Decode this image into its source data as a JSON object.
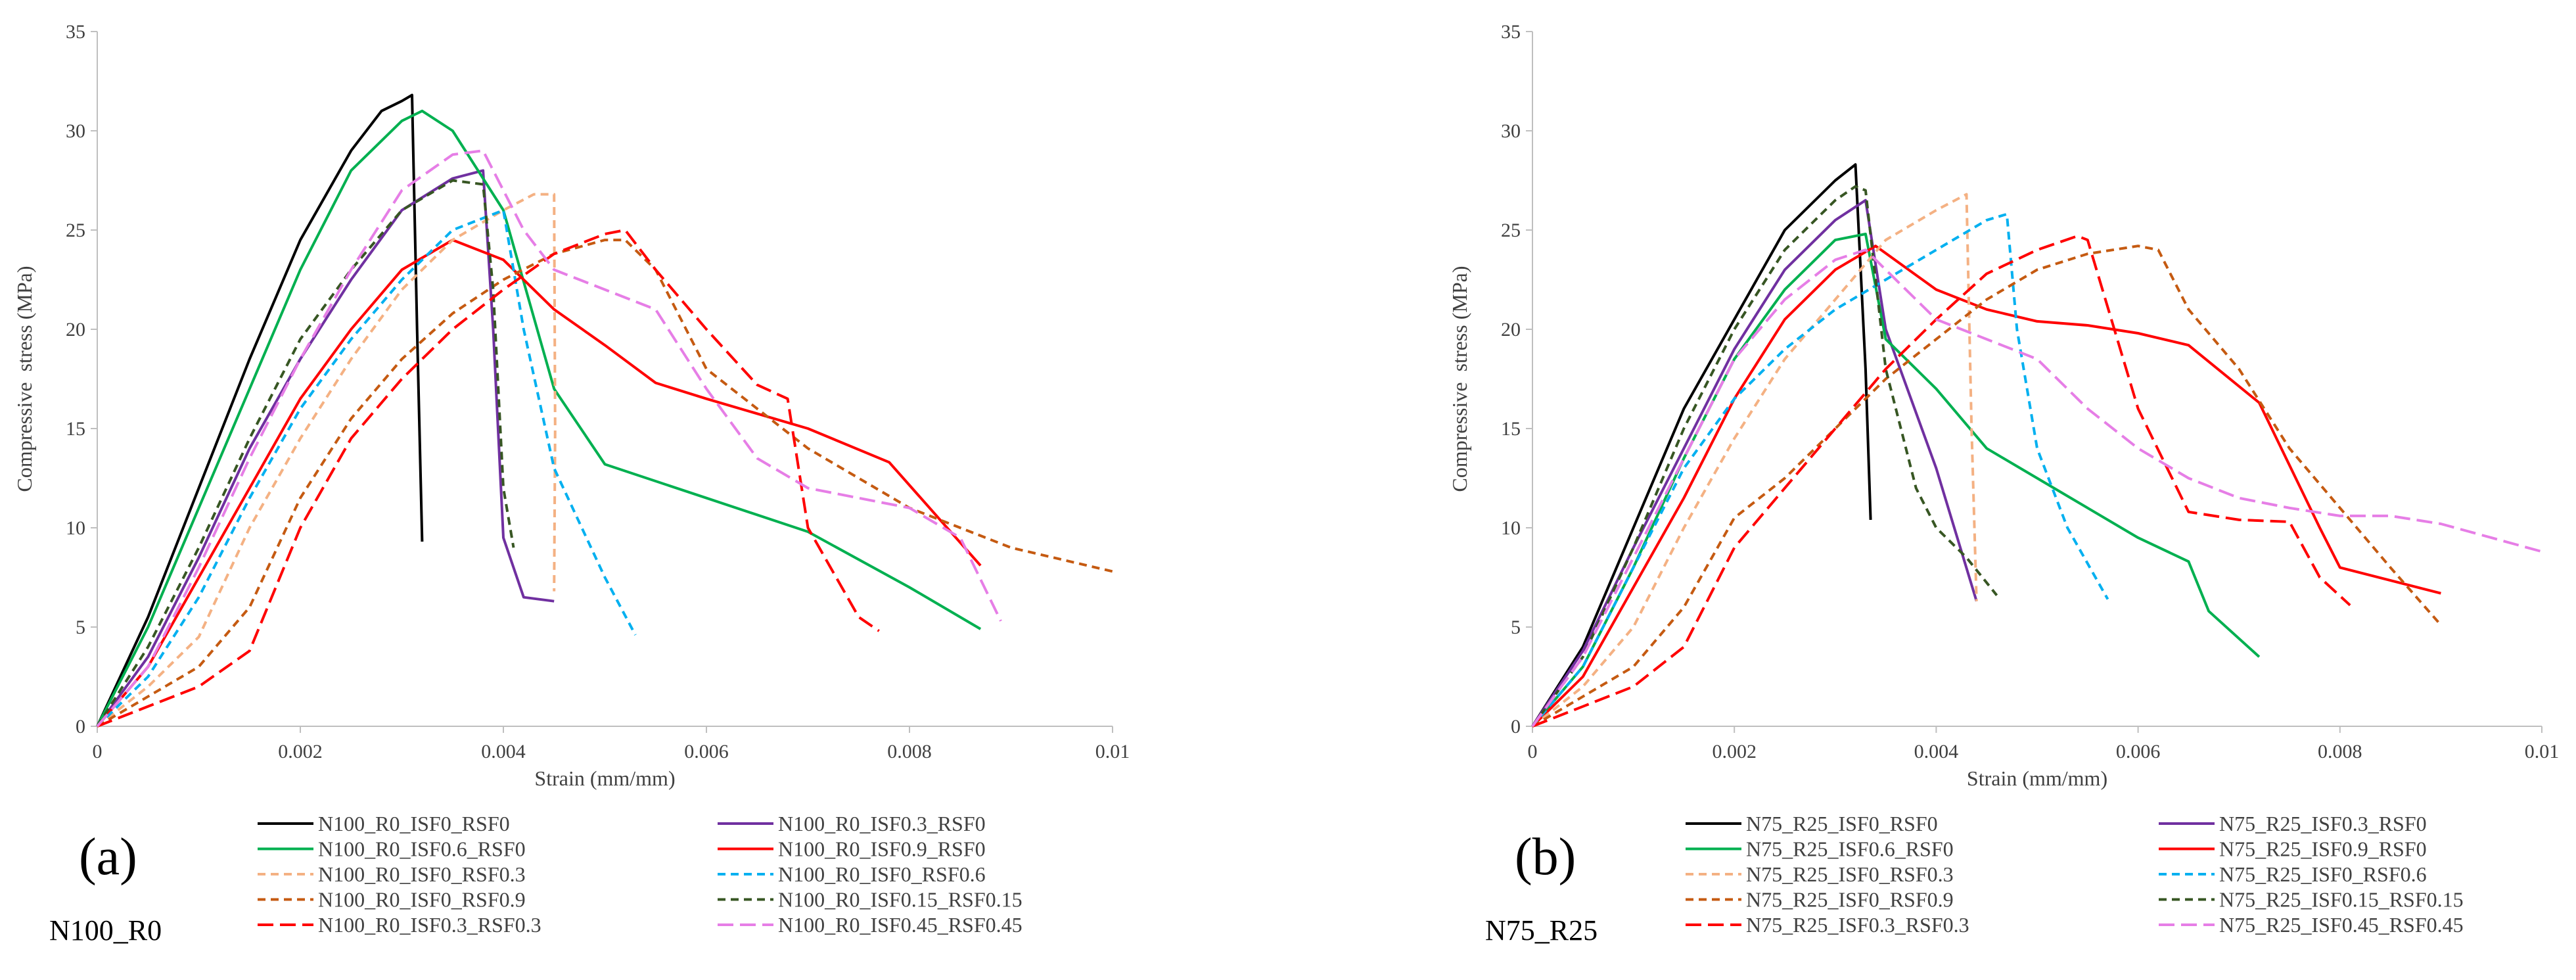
{
  "chart_data": [
    {
      "type": "line",
      "panel_label": "(a)",
      "group_label": "N100_R0",
      "xlabel": "Strain (mm/mm)",
      "ylabel": "Compressive  stress (MPa)",
      "xlim": [
        0,
        0.01
      ],
      "ylim": [
        0,
        35
      ],
      "xticks": [
        0,
        0.002,
        0.004,
        0.006,
        0.008,
        0.01
      ],
      "xtick_labels": [
        "0",
        "0.002",
        "0.004",
        "0.006",
        "0.008",
        "0.01"
      ],
      "yticks": [
        0,
        5,
        10,
        15,
        20,
        25,
        30,
        35
      ],
      "ytick_labels": [
        "0",
        "5",
        "10",
        "15",
        "20",
        "25",
        "30",
        "35"
      ],
      "series": [
        {
          "name": "N100_R0_ISF0_RSF0",
          "color": "#000000",
          "dash": "solid",
          "x": [
            0,
            0.0005,
            0.001,
            0.0015,
            0.002,
            0.0025,
            0.0028,
            0.003,
            0.0031,
            0.00315,
            0.0032
          ],
          "y": [
            0,
            5.5,
            12,
            18.5,
            24.5,
            29,
            31,
            31.5,
            31.8,
            20,
            9.3
          ]
        },
        {
          "name": "N100_R0_ISF0.3_RSF0",
          "color": "#7030a0",
          "dash": "solid",
          "x": [
            0,
            0.0005,
            0.001,
            0.0015,
            0.002,
            0.0025,
            0.003,
            0.0035,
            0.0038,
            0.0039,
            0.004,
            0.0042,
            0.0045
          ],
          "y": [
            0,
            3.5,
            8.5,
            14,
            18.5,
            22.5,
            26,
            27.6,
            28,
            20,
            9.5,
            6.5,
            6.3
          ]
        },
        {
          "name": "N100_R0_ISF0.6_RSF0",
          "color": "#00b050",
          "dash": "solid",
          "x": [
            0,
            0.0005,
            0.001,
            0.0015,
            0.002,
            0.0025,
            0.003,
            0.0032,
            0.0035,
            0.004,
            0.0045,
            0.005,
            0.006,
            0.007,
            0.008,
            0.0087
          ],
          "y": [
            0,
            5,
            11,
            17,
            23,
            28,
            30.5,
            31,
            30,
            26,
            17,
            13.2,
            11.5,
            9.8,
            7,
            4.9
          ]
        },
        {
          "name": "N100_R0_ISF0.9_RSF0",
          "color": "#ff0000",
          "dash": "solid",
          "x": [
            0,
            0.0005,
            0.001,
            0.0015,
            0.002,
            0.0025,
            0.003,
            0.0035,
            0.004,
            0.0045,
            0.005,
            0.0055,
            0.006,
            0.007,
            0.0078,
            0.0087
          ],
          "y": [
            0,
            3,
            7.5,
            12,
            16.5,
            20,
            23,
            24.5,
            23.5,
            21,
            19.2,
            17.3,
            16.5,
            15,
            13.3,
            8.1
          ]
        },
        {
          "name": "N100_R0_ISF0_RSF0.3",
          "color": "#f4b183",
          "dash": "dash",
          "x": [
            0,
            0.0005,
            0.001,
            0.0015,
            0.002,
            0.0025,
            0.003,
            0.0035,
            0.004,
            0.0043,
            0.0045,
            0.00451,
            0.0045
          ],
          "y": [
            0,
            2,
            4.5,
            10,
            14.5,
            18.5,
            22,
            24.5,
            26,
            26.8,
            26.8,
            15,
            6.8
          ]
        },
        {
          "name": "N100_R0_ISF0_RSF0.6",
          "color": "#00b0f0",
          "dash": "dash",
          "x": [
            0,
            0.0005,
            0.001,
            0.0015,
            0.002,
            0.0025,
            0.003,
            0.0035,
            0.004,
            0.0042,
            0.0045,
            0.005,
            0.0053
          ],
          "y": [
            0,
            2.5,
            6.5,
            11.5,
            16,
            19.5,
            22.5,
            25,
            26,
            20,
            13,
            7.5,
            4.6
          ]
        },
        {
          "name": "N100_R0_ISF0_RSF0.9",
          "color": "#c55a11",
          "dash": "dash",
          "x": [
            0,
            0.0005,
            0.001,
            0.0015,
            0.002,
            0.0025,
            0.003,
            0.0035,
            0.004,
            0.0045,
            0.005,
            0.0052,
            0.0055,
            0.006,
            0.007,
            0.008,
            0.0085,
            0.009,
            0.01
          ],
          "y": [
            0,
            1.5,
            3,
            6,
            11.5,
            15.5,
            18.5,
            20.8,
            22.5,
            23.8,
            24.5,
            24.5,
            23,
            18,
            14,
            11,
            10,
            9,
            7.8
          ]
        },
        {
          "name": "N100_R0_ISF0.15_RSF0.15",
          "color": "#375623",
          "dash": "dash",
          "x": [
            0,
            0.0005,
            0.001,
            0.0015,
            0.002,
            0.0025,
            0.003,
            0.0035,
            0.0038,
            0.0039,
            0.004,
            0.0041
          ],
          "y": [
            0,
            4,
            9,
            14.5,
            19.5,
            23,
            26,
            27.5,
            27.3,
            22,
            12,
            9
          ]
        },
        {
          "name": "N100_R0_ISF0.3_RSF0.3",
          "color": "#ff0000",
          "dash": "longdash",
          "x": [
            0,
            0.0005,
            0.001,
            0.0015,
            0.002,
            0.0025,
            0.003,
            0.0035,
            0.004,
            0.0045,
            0.005,
            0.0052,
            0.0055,
            0.006,
            0.0065,
            0.0068,
            0.007,
            0.0075,
            0.0077
          ],
          "y": [
            0,
            1,
            2,
            3.8,
            10,
            14.5,
            17.5,
            20,
            22,
            23.8,
            24.8,
            25,
            23,
            20,
            17.2,
            16.5,
            10,
            5.5,
            4.8
          ]
        },
        {
          "name": "N100_R0_ISF0.45_RSF0.45",
          "color": "#e67ee6",
          "dash": "longdash",
          "x": [
            0,
            0.0005,
            0.001,
            0.0015,
            0.002,
            0.0025,
            0.003,
            0.0035,
            0.0038,
            0.0042,
            0.0045,
            0.005,
            0.0055,
            0.006,
            0.0065,
            0.007,
            0.008,
            0.0085,
            0.0089
          ],
          "y": [
            0,
            3,
            8,
            13.5,
            18.5,
            23,
            27,
            28.8,
            29,
            25,
            23,
            22,
            21,
            17,
            13.5,
            12,
            11,
            9.5,
            5.3
          ]
        }
      ]
    },
    {
      "type": "line",
      "panel_label": "(b)",
      "group_label": "N75_R25",
      "xlabel": "Strain (mm/mm)",
      "ylabel": "Compressive  stress (MPa)",
      "xlim": [
        0,
        0.01
      ],
      "ylim": [
        0,
        35
      ],
      "xticks": [
        0,
        0.002,
        0.004,
        0.006,
        0.008,
        0.01
      ],
      "xtick_labels": [
        "0",
        "0.002",
        "0.004",
        "0.006",
        "0.008",
        "0.01"
      ],
      "yticks": [
        0,
        5,
        10,
        15,
        20,
        25,
        30,
        35
      ],
      "ytick_labels": [
        "0",
        "5",
        "10",
        "15",
        "20",
        "25",
        "30",
        "35"
      ],
      "series": [
        {
          "name": "N75_R25_ISF0_RSF0",
          "color": "#000000",
          "dash": "solid",
          "x": [
            0,
            0.0005,
            0.001,
            0.0015,
            0.002,
            0.0025,
            0.003,
            0.0032,
            0.0033,
            0.00335
          ],
          "y": [
            0,
            4,
            10,
            16,
            20.5,
            25,
            27.5,
            28.3,
            18,
            10.4
          ]
        },
        {
          "name": "N75_R25_ISF0.3_RSF0",
          "color": "#7030a0",
          "dash": "solid",
          "x": [
            0,
            0.0005,
            0.001,
            0.0015,
            0.002,
            0.0025,
            0.003,
            0.0033,
            0.0035,
            0.004,
            0.0044
          ],
          "y": [
            0,
            3.8,
            9,
            14,
            19,
            23,
            25.5,
            26.5,
            20,
            13,
            6.3
          ]
        },
        {
          "name": "N75_R25_ISF0.6_RSF0",
          "color": "#00b050",
          "dash": "solid",
          "x": [
            0,
            0.0005,
            0.001,
            0.0015,
            0.002,
            0.0025,
            0.003,
            0.0033,
            0.0035,
            0.004,
            0.0045,
            0.005,
            0.0055,
            0.006,
            0.0065,
            0.0067,
            0.0072
          ],
          "y": [
            0,
            3,
            8,
            13.5,
            18.5,
            22,
            24.5,
            24.8,
            19.5,
            17,
            14,
            12.5,
            11,
            9.5,
            8.3,
            5.8,
            3.5
          ]
        },
        {
          "name": "N75_R25_ISF0.9_RSF0",
          "color": "#ff0000",
          "dash": "solid",
          "x": [
            0,
            0.0005,
            0.001,
            0.0015,
            0.002,
            0.0025,
            0.003,
            0.0034,
            0.004,
            0.0045,
            0.005,
            0.0055,
            0.006,
            0.0065,
            0.0072,
            0.0078,
            0.008,
            0.009
          ],
          "y": [
            0,
            2.5,
            7,
            11.5,
            16.5,
            20.5,
            23,
            24.2,
            22,
            21,
            20.4,
            20.2,
            19.8,
            19.2,
            16.3,
            10,
            8,
            6.7
          ]
        },
        {
          "name": "N75_R25_ISF0_RSF0.3",
          "color": "#f4b183",
          "dash": "dash",
          "x": [
            0,
            0.0005,
            0.001,
            0.0015,
            0.002,
            0.0025,
            0.003,
            0.0035,
            0.004,
            0.0043,
            0.00435,
            0.0044
          ],
          "y": [
            0,
            2,
            5,
            10,
            14.5,
            18.5,
            21.5,
            24.5,
            26,
            26.8,
            15,
            6.3
          ]
        },
        {
          "name": "N75_R25_ISF0_RSF0.6",
          "color": "#00b0f0",
          "dash": "dash",
          "x": [
            0,
            0.0005,
            0.001,
            0.0015,
            0.002,
            0.0025,
            0.003,
            0.0035,
            0.004,
            0.0045,
            0.0047,
            0.0048,
            0.005,
            0.0053,
            0.0057
          ],
          "y": [
            0,
            3,
            8,
            13,
            16.5,
            19,
            21,
            22.5,
            24,
            25.5,
            25.8,
            20,
            14,
            10,
            6.4
          ]
        },
        {
          "name": "N75_R25_ISF0_RSF0.9",
          "color": "#c55a11",
          "dash": "dash",
          "x": [
            0,
            0.0005,
            0.001,
            0.0015,
            0.002,
            0.0025,
            0.003,
            0.0035,
            0.004,
            0.0045,
            0.005,
            0.0055,
            0.006,
            0.0062,
            0.0065,
            0.007,
            0.0075,
            0.008,
            0.0085,
            0.009
          ],
          "y": [
            0,
            1.5,
            3,
            6,
            10.5,
            12.5,
            15,
            17.5,
            19.5,
            21.5,
            23,
            23.8,
            24.2,
            24,
            21,
            18,
            14,
            11,
            8,
            5.1
          ]
        },
        {
          "name": "N75_R25_ISF0.15_RSF0.15",
          "color": "#375623",
          "dash": "dash",
          "x": [
            0,
            0.0005,
            0.001,
            0.0015,
            0.002,
            0.0025,
            0.003,
            0.0032,
            0.0033,
            0.0035,
            0.0038,
            0.004,
            0.0043,
            0.0046
          ],
          "y": [
            0,
            3.5,
            9,
            15,
            20,
            24,
            26.5,
            27.2,
            27,
            18,
            12,
            10,
            8.5,
            6.6
          ]
        },
        {
          "name": "N75_R25_ISF0.3_RSF0.3",
          "color": "#ff0000",
          "dash": "longdash",
          "x": [
            0,
            0.0005,
            0.001,
            0.0015,
            0.002,
            0.0025,
            0.003,
            0.0035,
            0.004,
            0.0045,
            0.005,
            0.0054,
            0.0055,
            0.006,
            0.0065,
            0.007,
            0.0075,
            0.0078,
            0.0081
          ],
          "y": [
            0,
            1,
            2,
            4,
            9,
            12,
            15,
            18,
            20.5,
            22.8,
            24,
            24.7,
            24.5,
            16,
            10.8,
            10.4,
            10.3,
            7.5,
            6.1
          ]
        },
        {
          "name": "N75_R25_ISF0.45_RSF0.45",
          "color": "#e67ee6",
          "dash": "longdash",
          "x": [
            0,
            0.0005,
            0.001,
            0.0015,
            0.002,
            0.0025,
            0.003,
            0.0033,
            0.0035,
            0.004,
            0.0045,
            0.005,
            0.0055,
            0.006,
            0.0065,
            0.007,
            0.0075,
            0.008,
            0.0085,
            0.009,
            0.0095,
            0.01
          ],
          "y": [
            0,
            3.5,
            8.5,
            13.5,
            18.5,
            21.5,
            23.5,
            24,
            23,
            20.5,
            19.5,
            18.5,
            16,
            14,
            12.5,
            11.5,
            11,
            10.6,
            10.6,
            10.2,
            9.5,
            8.8
          ]
        }
      ]
    }
  ]
}
